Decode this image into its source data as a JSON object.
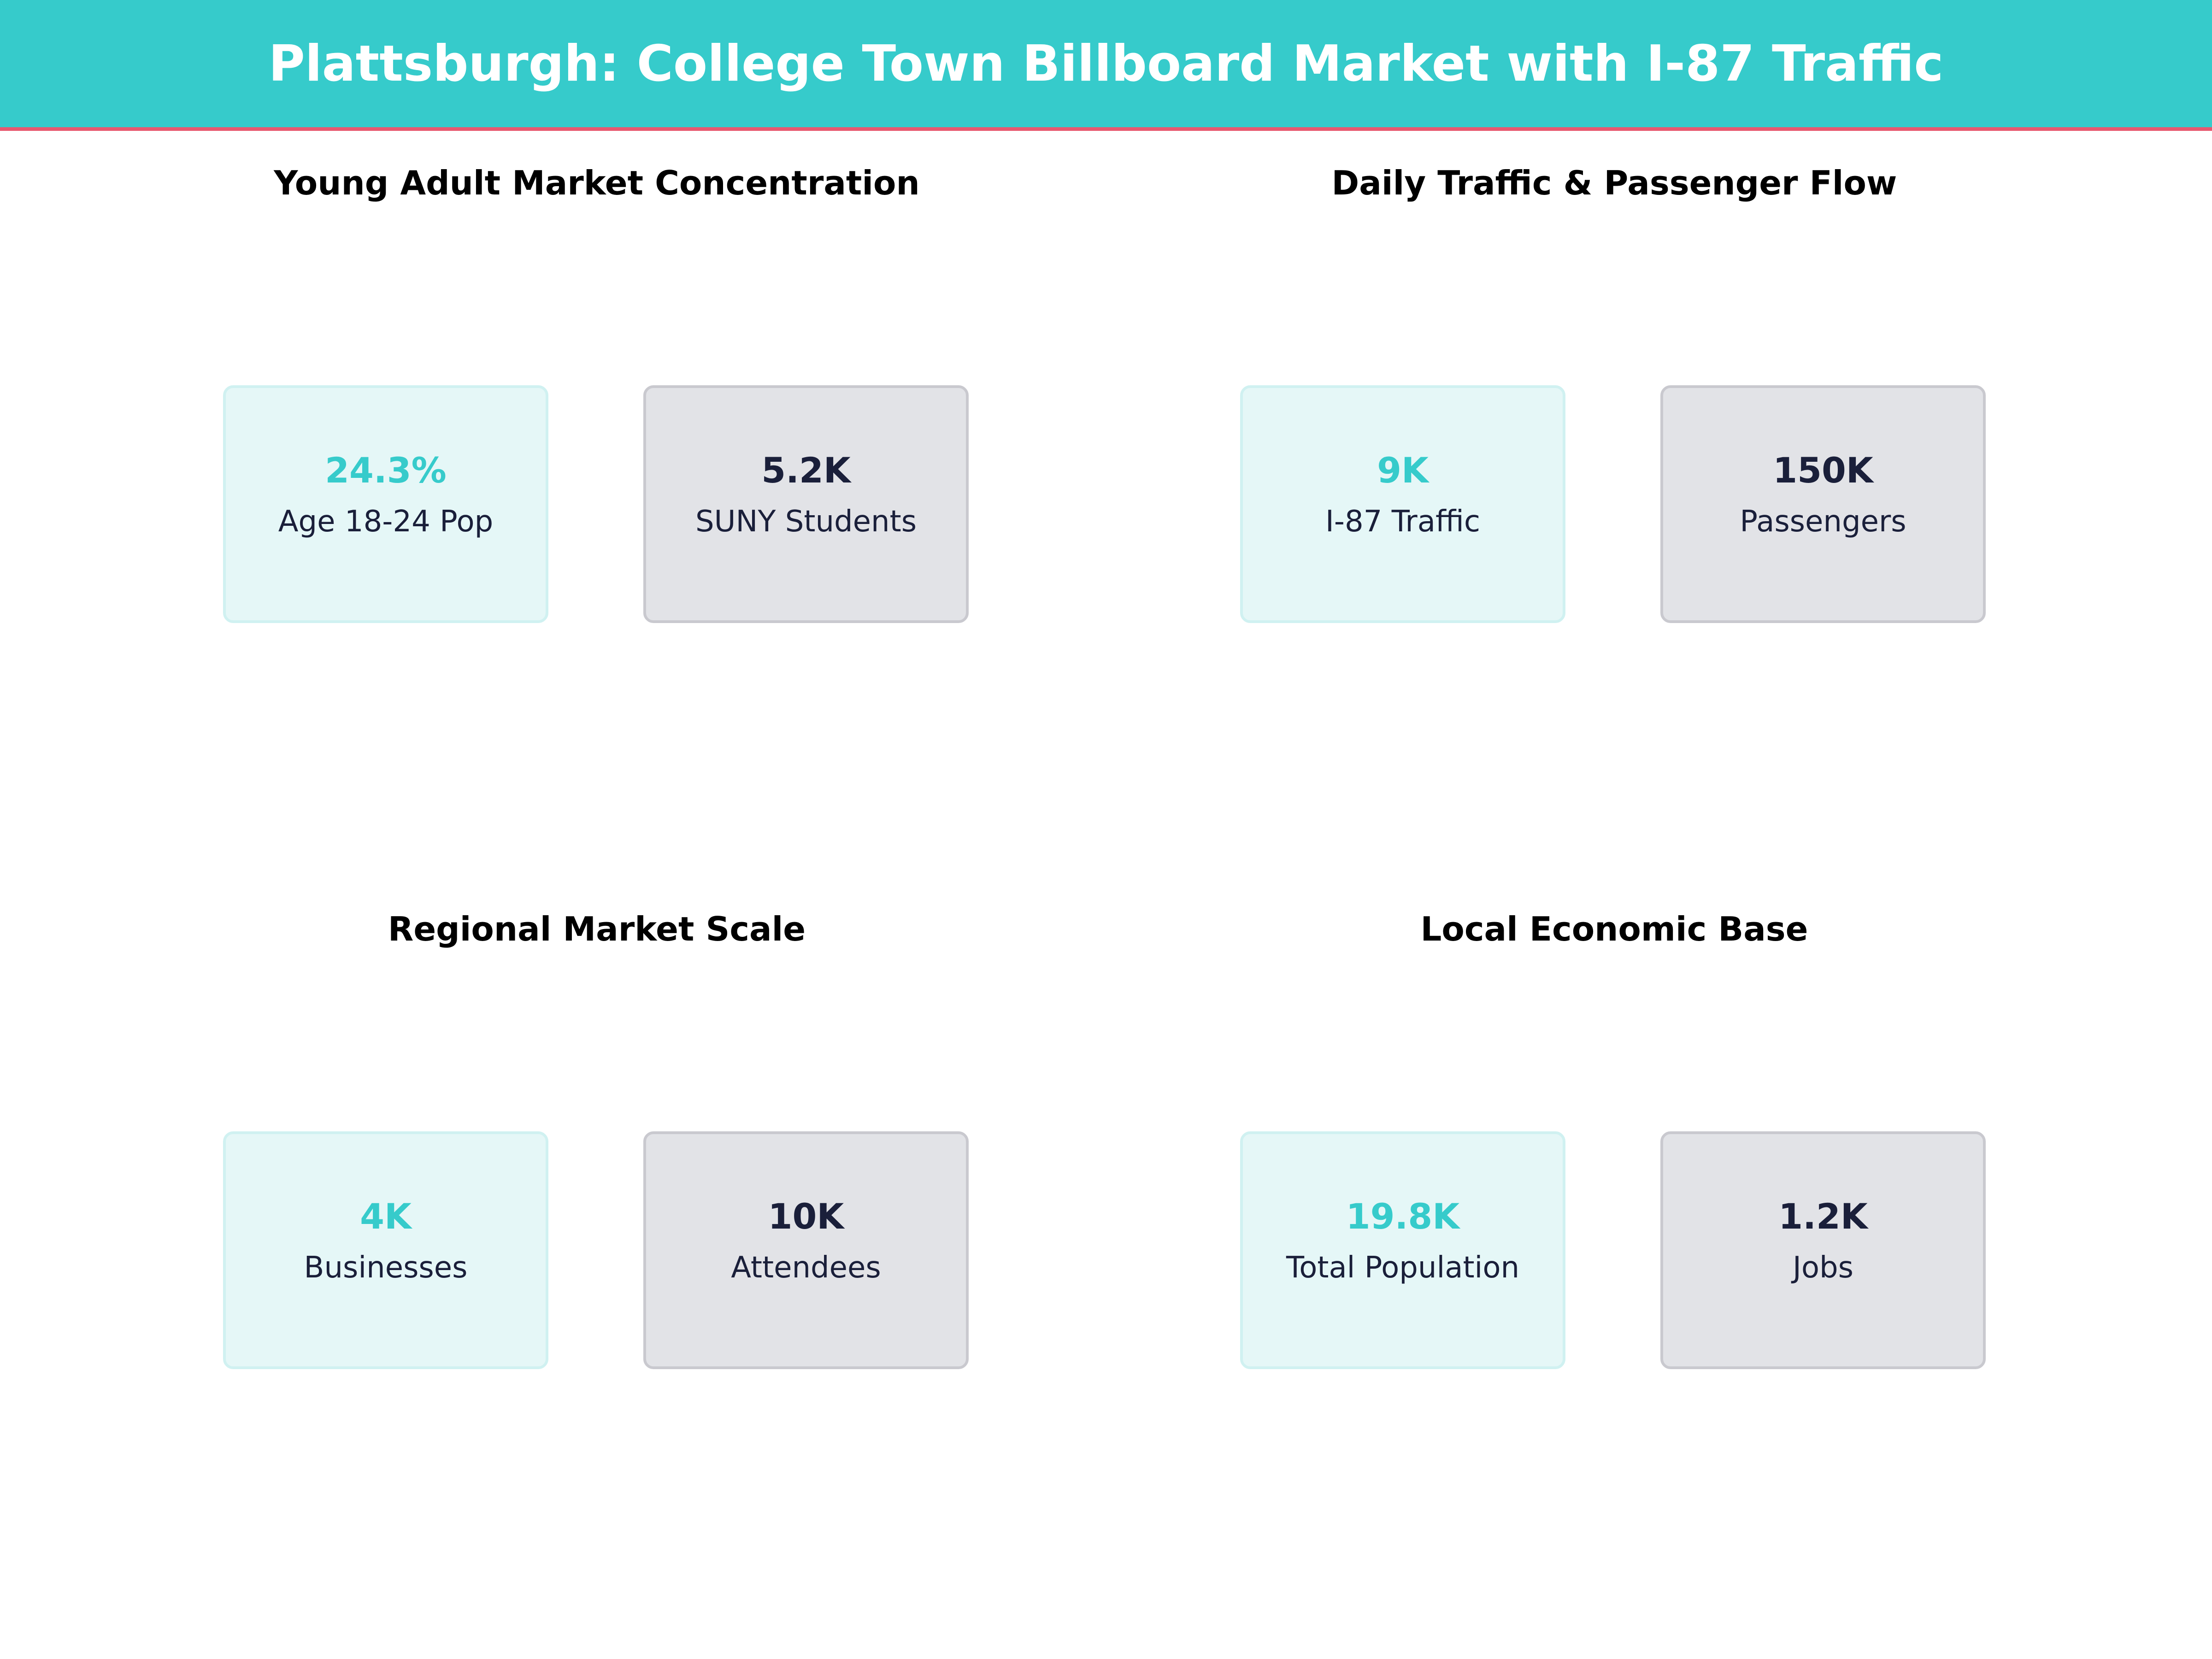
{
  "title": "Plattsburgh: College Town Billboard Market with I-87 Traffic",
  "colors": {
    "accent": "#36cbcb",
    "header_underline": "#e8596f",
    "dark_text": "#1a1f3a",
    "teal_card": "#e5f7f7",
    "grey_card": "#e2e3e7"
  },
  "sections": [
    {
      "title": "Young Adult Market Concentration",
      "cards": [
        {
          "value": "24.3%",
          "label": "Age 18-24 Pop"
        },
        {
          "value": "5.2K",
          "label": "SUNY Students"
        }
      ]
    },
    {
      "title": "Daily Traffic & Passenger Flow",
      "cards": [
        {
          "value": "9K",
          "label": "I-87 Traffic"
        },
        {
          "value": "150K",
          "label": "Passengers"
        }
      ]
    },
    {
      "title": "Regional Market Scale",
      "cards": [
        {
          "value": "4K",
          "label": "Businesses"
        },
        {
          "value": "10K",
          "label": "Attendees"
        }
      ]
    },
    {
      "title": "Local Economic Base",
      "cards": [
        {
          "value": "19.8K",
          "label": "Total Population"
        },
        {
          "value": "1.2K",
          "label": "Jobs"
        }
      ]
    }
  ]
}
